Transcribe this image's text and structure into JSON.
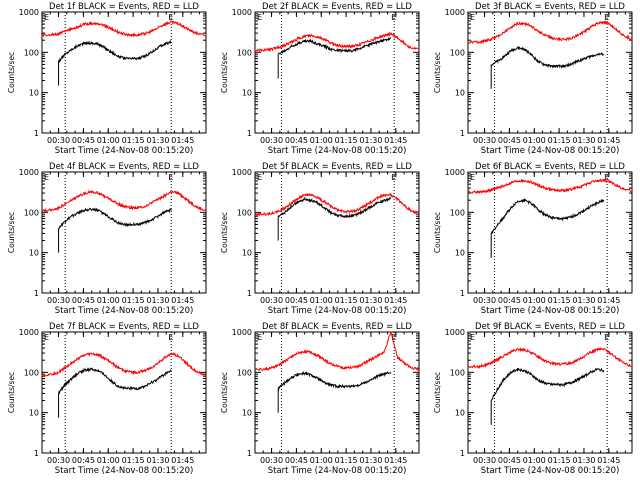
{
  "figure": {
    "x_tick_labels": [
      "00:30",
      "00:45",
      "01:00",
      "01:15",
      "01:30",
      "01:45"
    ],
    "y_tick_labels": [
      "1",
      "10",
      "100",
      "1000"
    ],
    "xlabel": "Start Time (24-Nov-08 00:15:20)",
    "ylabel": "Counts/sec",
    "marker_labels": [
      "E",
      "E"
    ],
    "colors": {
      "events": "#000000",
      "lld": "#ff0000",
      "axes": "#000000",
      "background": "#ffffff"
    }
  },
  "chart_data": [
    {
      "type": "line",
      "title": "Det 1f BLACK = Events, RED = LLD",
      "y_scale": "log",
      "ylim": [
        1,
        1000
      ],
      "xlim_minutes_after_start": [
        0,
        99
      ],
      "x_minutes_after_start": [
        0,
        6,
        10,
        14,
        18,
        22,
        26,
        30,
        34,
        38,
        42,
        46,
        50,
        54,
        58,
        62,
        66,
        70,
        74,
        78,
        82,
        86,
        90,
        94,
        99
      ],
      "series": [
        {
          "name": "Events",
          "color": "#000000",
          "x_range": [
            6,
            78
          ],
          "values": [
            null,
            null,
            60,
            90,
            120,
            150,
            170,
            170,
            160,
            130,
            100,
            80,
            70,
            70,
            70,
            80,
            100,
            130,
            160,
            180,
            null,
            null,
            null,
            null,
            null
          ]
        },
        {
          "name": "LLD",
          "color": "#ff0000",
          "x_range": [
            0,
            99
          ],
          "values": [
            270,
            270,
            290,
            330,
            380,
            440,
            500,
            520,
            500,
            450,
            380,
            320,
            280,
            270,
            270,
            290,
            330,
            400,
            500,
            560,
            520,
            420,
            340,
            290,
            260
          ]
        }
      ],
      "vlines_minutes": [
        14,
        78
      ]
    },
    {
      "type": "line",
      "title": "Det 2f BLACK = Events, RED = LLD",
      "y_scale": "log",
      "ylim": [
        1,
        1000
      ],
      "xlim_minutes_after_start": [
        0,
        99
      ],
      "x_minutes_after_start": [
        0,
        6,
        10,
        14,
        18,
        22,
        26,
        30,
        34,
        38,
        42,
        46,
        50,
        54,
        58,
        62,
        66,
        70,
        74,
        78,
        82,
        86,
        90,
        94,
        99
      ],
      "series": [
        {
          "name": "Events",
          "color": "#000000",
          "x_range": [
            14,
            84
          ],
          "values": [
            null,
            null,
            null,
            90,
            110,
            140,
            170,
            190,
            190,
            160,
            140,
            120,
            110,
            110,
            110,
            120,
            140,
            160,
            180,
            200,
            220,
            null,
            null,
            null,
            null
          ]
        },
        {
          "name": "LLD",
          "color": "#ff0000",
          "x_range": [
            0,
            99
          ],
          "values": [
            110,
            115,
            120,
            130,
            150,
            180,
            220,
            250,
            260,
            240,
            210,
            170,
            150,
            140,
            140,
            150,
            170,
            200,
            230,
            260,
            290,
            230,
            170,
            130,
            120
          ]
        }
      ],
      "vlines_minutes": [
        16,
        84
      ]
    },
    {
      "type": "line",
      "title": "Det 3f BLACK = Events, RED = LLD",
      "y_scale": "log",
      "ylim": [
        1,
        1000
      ],
      "xlim_minutes_after_start": [
        0,
        99
      ],
      "x_minutes_after_start": [
        0,
        6,
        10,
        14,
        18,
        22,
        26,
        30,
        34,
        38,
        42,
        46,
        50,
        54,
        58,
        62,
        66,
        70,
        74,
        78,
        82,
        86,
        90,
        94,
        99
      ],
      "series": [
        {
          "name": "Events",
          "color": "#000000",
          "x_range": [
            14,
            84
          ],
          "values": [
            null,
            null,
            null,
            50,
            60,
            80,
            110,
            130,
            120,
            90,
            60,
            50,
            45,
            45,
            45,
            50,
            60,
            70,
            80,
            90,
            90,
            null,
            null,
            null,
            null
          ]
        },
        {
          "name": "LLD",
          "color": "#ff0000",
          "x_range": [
            0,
            99
          ],
          "values": [
            180,
            180,
            190,
            210,
            250,
            320,
            420,
            520,
            520,
            450,
            350,
            270,
            230,
            210,
            210,
            220,
            260,
            320,
            420,
            520,
            560,
            480,
            360,
            260,
            210
          ]
        }
      ],
      "vlines_minutes": [
        16,
        84
      ]
    },
    {
      "type": "line",
      "title": "Det 4f BLACK = Events, RED = LLD",
      "y_scale": "log",
      "ylim": [
        1,
        1000
      ],
      "xlim_minutes_after_start": [
        0,
        99
      ],
      "x_minutes_after_start": [
        0,
        6,
        10,
        14,
        18,
        22,
        26,
        30,
        34,
        38,
        42,
        46,
        50,
        54,
        58,
        62,
        66,
        70,
        74,
        78,
        82,
        86,
        90,
        94,
        99
      ],
      "series": [
        {
          "name": "Events",
          "color": "#000000",
          "x_range": [
            8,
            78
          ],
          "values": [
            null,
            null,
            40,
            60,
            80,
            100,
            115,
            120,
            110,
            90,
            70,
            55,
            50,
            50,
            50,
            55,
            65,
            80,
            100,
            115,
            null,
            null,
            null,
            null,
            null
          ]
        },
        {
          "name": "LLD",
          "color": "#ff0000",
          "x_range": [
            0,
            99
          ],
          "values": [
            110,
            115,
            130,
            160,
            200,
            250,
            300,
            330,
            300,
            250,
            200,
            160,
            140,
            130,
            130,
            140,
            170,
            210,
            260,
            320,
            300,
            230,
            170,
            130,
            110
          ]
        }
      ],
      "vlines_minutes": [
        14,
        78
      ]
    },
    {
      "type": "line",
      "title": "Det 5f BLACK = Events, RED = LLD",
      "y_scale": "log",
      "ylim": [
        1,
        1000
      ],
      "xlim_minutes_after_start": [
        0,
        99
      ],
      "x_minutes_after_start": [
        0,
        6,
        10,
        14,
        18,
        22,
        26,
        30,
        34,
        38,
        42,
        46,
        50,
        54,
        58,
        62,
        66,
        70,
        74,
        78,
        82,
        86,
        90,
        94,
        99
      ],
      "series": [
        {
          "name": "Events",
          "color": "#000000",
          "x_range": [
            14,
            84
          ],
          "values": [
            null,
            null,
            null,
            80,
            100,
            140,
            180,
            210,
            200,
            170,
            130,
            100,
            85,
            80,
            80,
            90,
            110,
            140,
            170,
            200,
            220,
            null,
            null,
            null,
            null
          ]
        },
        {
          "name": "LLD",
          "color": "#ff0000",
          "x_range": [
            0,
            99
          ],
          "values": [
            90,
            90,
            95,
            105,
            130,
            170,
            220,
            270,
            270,
            230,
            180,
            140,
            115,
            105,
            105,
            115,
            140,
            180,
            230,
            270,
            270,
            210,
            150,
            110,
            95
          ]
        }
      ],
      "vlines_minutes": [
        16,
        84
      ]
    },
    {
      "type": "line",
      "title": "Det 6f BLACK = Events, RED = LLD",
      "y_scale": "log",
      "ylim": [
        1,
        1000
      ],
      "xlim_minutes_after_start": [
        0,
        99
      ],
      "x_minutes_after_start": [
        0,
        6,
        10,
        14,
        18,
        22,
        26,
        30,
        34,
        38,
        42,
        46,
        50,
        54,
        58,
        62,
        66,
        70,
        74,
        78,
        82,
        86,
        90,
        94,
        99
      ],
      "series": [
        {
          "name": "Events",
          "color": "#000000",
          "x_range": [
            14,
            84
          ],
          "values": [
            null,
            null,
            null,
            30,
            50,
            80,
            130,
            190,
            200,
            170,
            120,
            90,
            75,
            70,
            70,
            75,
            90,
            110,
            140,
            170,
            200,
            null,
            null,
            null,
            null
          ]
        },
        {
          "name": "LLD",
          "color": "#ff0000",
          "x_range": [
            0,
            99
          ],
          "values": [
            320,
            320,
            330,
            360,
            400,
            460,
            540,
            600,
            600,
            560,
            480,
            410,
            370,
            350,
            350,
            370,
            410,
            470,
            550,
            600,
            620,
            560,
            460,
            380,
            340
          ]
        }
      ],
      "vlines_minutes": [
        16,
        84
      ]
    },
    {
      "type": "line",
      "title": "Det 7f BLACK = Events, RED = LLD",
      "y_scale": "log",
      "ylim": [
        1,
        1000
      ],
      "xlim_minutes_after_start": [
        0,
        99
      ],
      "x_minutes_after_start": [
        0,
        6,
        10,
        14,
        18,
        22,
        26,
        30,
        34,
        38,
        42,
        46,
        50,
        54,
        58,
        62,
        66,
        70,
        74,
        78,
        82,
        86,
        90,
        94,
        99
      ],
      "series": [
        {
          "name": "Events",
          "color": "#000000",
          "x_range": [
            8,
            78
          ],
          "values": [
            null,
            null,
            30,
            50,
            70,
            95,
            115,
            120,
            110,
            85,
            60,
            45,
            40,
            40,
            40,
            45,
            55,
            70,
            90,
            110,
            null,
            null,
            null,
            null,
            null
          ]
        },
        {
          "name": "LLD",
          "color": "#ff0000",
          "x_range": [
            0,
            99
          ],
          "values": [
            85,
            90,
            100,
            130,
            170,
            220,
            270,
            290,
            270,
            220,
            170,
            130,
            110,
            100,
            100,
            110,
            130,
            170,
            230,
            290,
            260,
            190,
            130,
            100,
            85
          ]
        }
      ],
      "vlines_minutes": [
        14,
        78
      ]
    },
    {
      "type": "line",
      "title": "Det 8f BLACK = Events, RED = LLD",
      "y_scale": "log",
      "ylim": [
        1,
        1000
      ],
      "xlim_minutes_after_start": [
        0,
        99
      ],
      "x_minutes_after_start": [
        0,
        6,
        10,
        14,
        18,
        22,
        26,
        30,
        34,
        38,
        42,
        46,
        50,
        54,
        58,
        62,
        66,
        70,
        74,
        78,
        82,
        86,
        90,
        94,
        99
      ],
      "series": [
        {
          "name": "Events",
          "color": "#000000",
          "x_range": [
            14,
            84
          ],
          "values": [
            null,
            null,
            null,
            40,
            55,
            75,
            90,
            95,
            85,
            70,
            55,
            48,
            45,
            45,
            45,
            48,
            55,
            65,
            80,
            90,
            100,
            null,
            null,
            null,
            null
          ]
        },
        {
          "name": "LLD",
          "color": "#ff0000",
          "x_range": [
            0,
            99
          ],
          "values": [
            120,
            120,
            130,
            150,
            190,
            240,
            300,
            330,
            310,
            260,
            200,
            160,
            140,
            130,
            130,
            140,
            170,
            210,
            260,
            320,
            1000,
            240,
            170,
            130,
            120
          ]
        }
      ],
      "vlines_minutes": [
        16,
        84
      ]
    },
    {
      "type": "line",
      "title": "Det 9f BLACK = Events, RED = LLD",
      "y_scale": "log",
      "ylim": [
        1,
        1000
      ],
      "xlim_minutes_after_start": [
        0,
        99
      ],
      "x_minutes_after_start": [
        0,
        6,
        10,
        14,
        18,
        22,
        26,
        30,
        34,
        38,
        42,
        46,
        50,
        54,
        58,
        62,
        66,
        70,
        74,
        78,
        82,
        86,
        90,
        94,
        99
      ],
      "series": [
        {
          "name": "Events",
          "color": "#000000",
          "x_range": [
            14,
            84
          ],
          "values": [
            null,
            null,
            null,
            20,
            40,
            70,
            100,
            120,
            110,
            90,
            65,
            55,
            50,
            50,
            50,
            55,
            65,
            80,
            100,
            120,
            110,
            null,
            null,
            null,
            null
          ]
        },
        {
          "name": "LLD",
          "color": "#ff0000",
          "x_range": [
            0,
            99
          ],
          "values": [
            140,
            140,
            150,
            170,
            210,
            260,
            320,
            370,
            360,
            310,
            250,
            200,
            170,
            160,
            160,
            170,
            200,
            250,
            310,
            370,
            380,
            300,
            220,
            170,
            140
          ]
        }
      ],
      "vlines_minutes": [
        16,
        84
      ]
    }
  ]
}
